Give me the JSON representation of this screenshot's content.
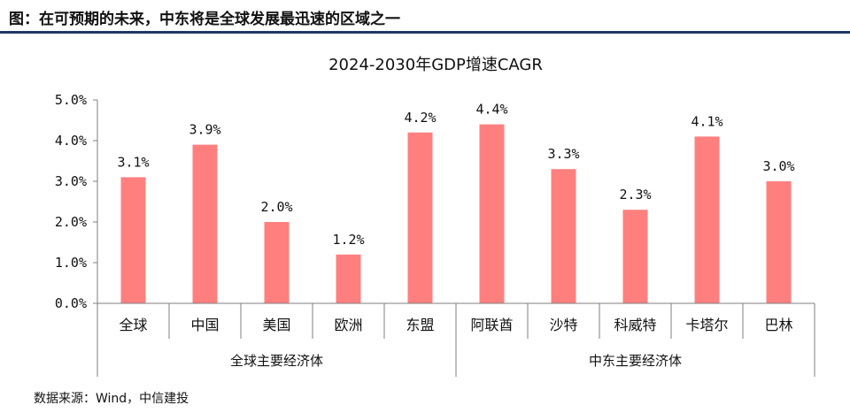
{
  "figure": {
    "caption": "图：在可预期的未来，中东将是全球发展最迅速的区域之一",
    "source": "数据来源：Wind，中信建投"
  },
  "colors": {
    "bar": "#ff7f7f",
    "axis": "#7f7f7f",
    "rule": "#1f3864"
  },
  "chart_data": {
    "type": "bar",
    "title": "2024-2030年GDP增速CAGR",
    "xlabel": "",
    "ylabel": "",
    "ylim": [
      0,
      5
    ],
    "y_ticks": [
      "0.0%",
      "1.0%",
      "2.0%",
      "3.0%",
      "4.0%",
      "5.0%"
    ],
    "y_tick_values": [
      0,
      1,
      2,
      3,
      4,
      5
    ],
    "categories": [
      "全球",
      "中国",
      "美国",
      "欧洲",
      "东盟",
      "阿联酋",
      "沙特",
      "科威特",
      "卡塔尔",
      "巴林"
    ],
    "values": [
      3.1,
      3.9,
      2.0,
      1.2,
      4.2,
      4.4,
      3.3,
      2.3,
      4.1,
      3.0
    ],
    "data_labels": [
      "3.1%",
      "3.9%",
      "2.0%",
      "1.2%",
      "4.2%",
      "4.4%",
      "3.3%",
      "2.3%",
      "4.1%",
      "3.0%"
    ],
    "groups": [
      {
        "label": "全球主要经济体",
        "start": 0,
        "end": 4
      },
      {
        "label": "中东主要经济体",
        "start": 5,
        "end": 9
      }
    ],
    "grid": false,
    "legend": "none"
  }
}
